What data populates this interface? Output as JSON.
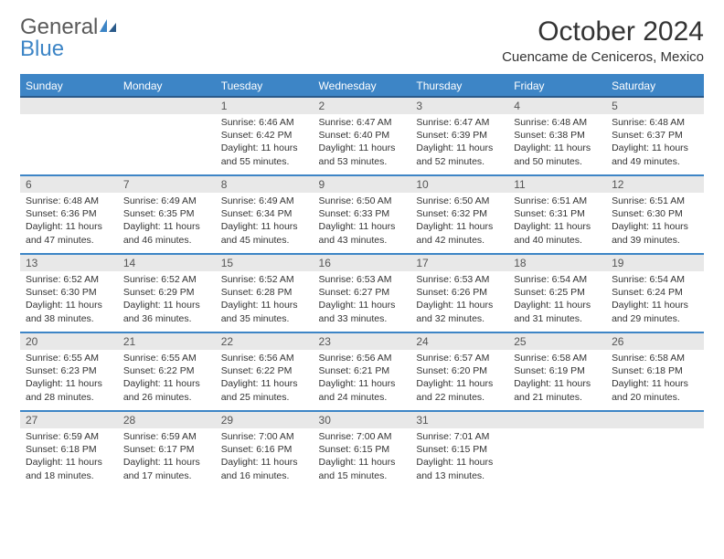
{
  "logo": {
    "general": "General",
    "blue": "Blue"
  },
  "title": "October 2024",
  "location": "Cuencame de Ceniceros, Mexico",
  "colors": {
    "brand_blue": "#3d85c6",
    "header_border": "#2a5a8a",
    "daynum_bg": "#e8e8e8",
    "text": "#333333",
    "logo_gray": "#5a5a5a"
  },
  "weekdays": [
    "Sunday",
    "Monday",
    "Tuesday",
    "Wednesday",
    "Thursday",
    "Friday",
    "Saturday"
  ],
  "weeks": [
    [
      {
        "n": "",
        "sr": "",
        "ss": "",
        "dl": ""
      },
      {
        "n": "",
        "sr": "",
        "ss": "",
        "dl": ""
      },
      {
        "n": "1",
        "sr": "Sunrise: 6:46 AM",
        "ss": "Sunset: 6:42 PM",
        "dl": "Daylight: 11 hours and 55 minutes."
      },
      {
        "n": "2",
        "sr": "Sunrise: 6:47 AM",
        "ss": "Sunset: 6:40 PM",
        "dl": "Daylight: 11 hours and 53 minutes."
      },
      {
        "n": "3",
        "sr": "Sunrise: 6:47 AM",
        "ss": "Sunset: 6:39 PM",
        "dl": "Daylight: 11 hours and 52 minutes."
      },
      {
        "n": "4",
        "sr": "Sunrise: 6:48 AM",
        "ss": "Sunset: 6:38 PM",
        "dl": "Daylight: 11 hours and 50 minutes."
      },
      {
        "n": "5",
        "sr": "Sunrise: 6:48 AM",
        "ss": "Sunset: 6:37 PM",
        "dl": "Daylight: 11 hours and 49 minutes."
      }
    ],
    [
      {
        "n": "6",
        "sr": "Sunrise: 6:48 AM",
        "ss": "Sunset: 6:36 PM",
        "dl": "Daylight: 11 hours and 47 minutes."
      },
      {
        "n": "7",
        "sr": "Sunrise: 6:49 AM",
        "ss": "Sunset: 6:35 PM",
        "dl": "Daylight: 11 hours and 46 minutes."
      },
      {
        "n": "8",
        "sr": "Sunrise: 6:49 AM",
        "ss": "Sunset: 6:34 PM",
        "dl": "Daylight: 11 hours and 45 minutes."
      },
      {
        "n": "9",
        "sr": "Sunrise: 6:50 AM",
        "ss": "Sunset: 6:33 PM",
        "dl": "Daylight: 11 hours and 43 minutes."
      },
      {
        "n": "10",
        "sr": "Sunrise: 6:50 AM",
        "ss": "Sunset: 6:32 PM",
        "dl": "Daylight: 11 hours and 42 minutes."
      },
      {
        "n": "11",
        "sr": "Sunrise: 6:51 AM",
        "ss": "Sunset: 6:31 PM",
        "dl": "Daylight: 11 hours and 40 minutes."
      },
      {
        "n": "12",
        "sr": "Sunrise: 6:51 AM",
        "ss": "Sunset: 6:30 PM",
        "dl": "Daylight: 11 hours and 39 minutes."
      }
    ],
    [
      {
        "n": "13",
        "sr": "Sunrise: 6:52 AM",
        "ss": "Sunset: 6:30 PM",
        "dl": "Daylight: 11 hours and 38 minutes."
      },
      {
        "n": "14",
        "sr": "Sunrise: 6:52 AM",
        "ss": "Sunset: 6:29 PM",
        "dl": "Daylight: 11 hours and 36 minutes."
      },
      {
        "n": "15",
        "sr": "Sunrise: 6:52 AM",
        "ss": "Sunset: 6:28 PM",
        "dl": "Daylight: 11 hours and 35 minutes."
      },
      {
        "n": "16",
        "sr": "Sunrise: 6:53 AM",
        "ss": "Sunset: 6:27 PM",
        "dl": "Daylight: 11 hours and 33 minutes."
      },
      {
        "n": "17",
        "sr": "Sunrise: 6:53 AM",
        "ss": "Sunset: 6:26 PM",
        "dl": "Daylight: 11 hours and 32 minutes."
      },
      {
        "n": "18",
        "sr": "Sunrise: 6:54 AM",
        "ss": "Sunset: 6:25 PM",
        "dl": "Daylight: 11 hours and 31 minutes."
      },
      {
        "n": "19",
        "sr": "Sunrise: 6:54 AM",
        "ss": "Sunset: 6:24 PM",
        "dl": "Daylight: 11 hours and 29 minutes."
      }
    ],
    [
      {
        "n": "20",
        "sr": "Sunrise: 6:55 AM",
        "ss": "Sunset: 6:23 PM",
        "dl": "Daylight: 11 hours and 28 minutes."
      },
      {
        "n": "21",
        "sr": "Sunrise: 6:55 AM",
        "ss": "Sunset: 6:22 PM",
        "dl": "Daylight: 11 hours and 26 minutes."
      },
      {
        "n": "22",
        "sr": "Sunrise: 6:56 AM",
        "ss": "Sunset: 6:22 PM",
        "dl": "Daylight: 11 hours and 25 minutes."
      },
      {
        "n": "23",
        "sr": "Sunrise: 6:56 AM",
        "ss": "Sunset: 6:21 PM",
        "dl": "Daylight: 11 hours and 24 minutes."
      },
      {
        "n": "24",
        "sr": "Sunrise: 6:57 AM",
        "ss": "Sunset: 6:20 PM",
        "dl": "Daylight: 11 hours and 22 minutes."
      },
      {
        "n": "25",
        "sr": "Sunrise: 6:58 AM",
        "ss": "Sunset: 6:19 PM",
        "dl": "Daylight: 11 hours and 21 minutes."
      },
      {
        "n": "26",
        "sr": "Sunrise: 6:58 AM",
        "ss": "Sunset: 6:18 PM",
        "dl": "Daylight: 11 hours and 20 minutes."
      }
    ],
    [
      {
        "n": "27",
        "sr": "Sunrise: 6:59 AM",
        "ss": "Sunset: 6:18 PM",
        "dl": "Daylight: 11 hours and 18 minutes."
      },
      {
        "n": "28",
        "sr": "Sunrise: 6:59 AM",
        "ss": "Sunset: 6:17 PM",
        "dl": "Daylight: 11 hours and 17 minutes."
      },
      {
        "n": "29",
        "sr": "Sunrise: 7:00 AM",
        "ss": "Sunset: 6:16 PM",
        "dl": "Daylight: 11 hours and 16 minutes."
      },
      {
        "n": "30",
        "sr": "Sunrise: 7:00 AM",
        "ss": "Sunset: 6:15 PM",
        "dl": "Daylight: 11 hours and 15 minutes."
      },
      {
        "n": "31",
        "sr": "Sunrise: 7:01 AM",
        "ss": "Sunset: 6:15 PM",
        "dl": "Daylight: 11 hours and 13 minutes."
      },
      {
        "n": "",
        "sr": "",
        "ss": "",
        "dl": ""
      },
      {
        "n": "",
        "sr": "",
        "ss": "",
        "dl": ""
      }
    ]
  ]
}
